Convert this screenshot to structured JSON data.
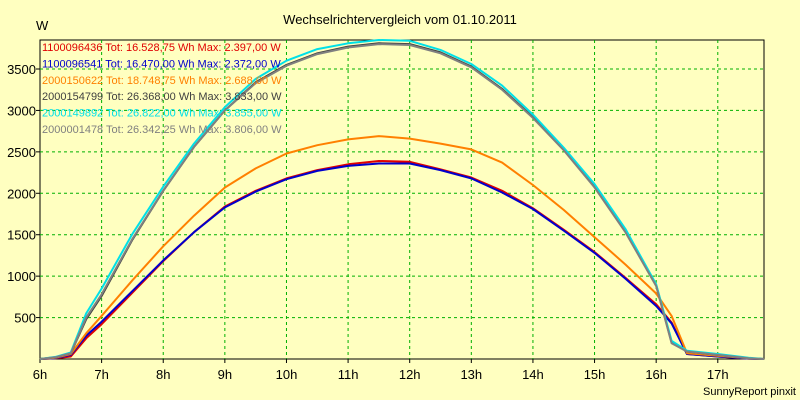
{
  "chart_data": {
    "type": "line",
    "title": "Wechselrichtervergleich vom 01.10.2011",
    "ylabel": "W",
    "xlabel": "",
    "footer": "SunnyReport pinxit",
    "xlim": [
      6,
      17.75
    ],
    "ylim": [
      0,
      3850
    ],
    "grid": true,
    "x_ticks": [
      6,
      7,
      8,
      9,
      10,
      11,
      12,
      13,
      14,
      15,
      16,
      17
    ],
    "x_tick_labels": [
      "6h",
      "7h",
      "8h",
      "9h",
      "10h",
      "11h",
      "12h",
      "13h",
      "14h",
      "15h",
      "16h",
      "17h"
    ],
    "y_ticks": [
      500,
      1000,
      1500,
      2000,
      2500,
      3000,
      3500
    ],
    "y_tick_labels": [
      "500",
      "1000",
      "1500",
      "2000",
      "2500",
      "3000",
      "3500"
    ],
    "legend_position": "top-left",
    "x": [
      6.0,
      6.25,
      6.5,
      6.75,
      7.0,
      7.5,
      8.0,
      8.5,
      9.0,
      9.5,
      10.0,
      10.5,
      11.0,
      11.5,
      12.0,
      12.5,
      13.0,
      13.5,
      14.0,
      14.5,
      15.0,
      15.5,
      16.0,
      16.25,
      16.5,
      17.0,
      17.5,
      17.75
    ],
    "series": [
      {
        "name": "1100096436",
        "legend": "1100096436 Tot: 16.528,75 Wh Max: 2.397,00 W",
        "color": "#e00000",
        "values": [
          0,
          10,
          30,
          250,
          420,
          800,
          1180,
          1530,
          1840,
          2030,
          2180,
          2280,
          2350,
          2390,
          2380,
          2290,
          2190,
          2030,
          1820,
          1560,
          1290,
          980,
          660,
          440,
          60,
          30,
          5,
          0
        ]
      },
      {
        "name": "1100096541",
        "legend": "1100096541 Tot: 16.470,00 Wh Max: 2.372,00 W",
        "color": "#0000cc",
        "values": [
          0,
          10,
          50,
          280,
          450,
          820,
          1190,
          1530,
          1830,
          2020,
          2170,
          2270,
          2330,
          2360,
          2360,
          2280,
          2180,
          2010,
          1810,
          1550,
          1280,
          970,
          640,
          430,
          60,
          30,
          5,
          0
        ]
      },
      {
        "name": "2000150622",
        "legend": "2000150622 Tot: 18.748,75 Wh Max: 2.688,00 W",
        "color": "#ff8000",
        "values": [
          0,
          15,
          60,
          310,
          520,
          950,
          1360,
          1730,
          2070,
          2300,
          2480,
          2580,
          2650,
          2690,
          2660,
          2600,
          2530,
          2370,
          2100,
          1800,
          1470,
          1140,
          790,
          520,
          70,
          40,
          10,
          0
        ]
      },
      {
        "name": "2000154799",
        "legend": "2000154799 Tot: 26.368,00 Wh Max: 3.833,00 W",
        "color": "#404040",
        "values": [
          0,
          20,
          70,
          480,
          760,
          1440,
          2030,
          2560,
          3000,
          3340,
          3550,
          3690,
          3770,
          3810,
          3800,
          3700,
          3530,
          3260,
          2920,
          2530,
          2080,
          1540,
          890,
          200,
          90,
          50,
          10,
          0
        ]
      },
      {
        "name": "2000149892",
        "legend": "2000149892 Tot: 26.822,00 Wh Max: 3.855,00 W",
        "color": "#00e0e8",
        "values": [
          0,
          25,
          80,
          550,
          850,
          1510,
          2080,
          2600,
          3040,
          3380,
          3600,
          3740,
          3810,
          3850,
          3840,
          3730,
          3560,
          3300,
          2950,
          2550,
          2110,
          1570,
          900,
          220,
          100,
          60,
          15,
          0
        ]
      },
      {
        "name": "2000001478",
        "legend": "2000001478 Tot: 26.342,25 Wh Max: 3.806,00 W",
        "color": "#808080",
        "values": [
          0,
          20,
          70,
          500,
          780,
          1450,
          2030,
          2560,
          3000,
          3330,
          3540,
          3680,
          3760,
          3800,
          3790,
          3690,
          3520,
          3250,
          2910,
          2520,
          2070,
          1530,
          880,
          190,
          90,
          50,
          10,
          0
        ]
      }
    ]
  }
}
